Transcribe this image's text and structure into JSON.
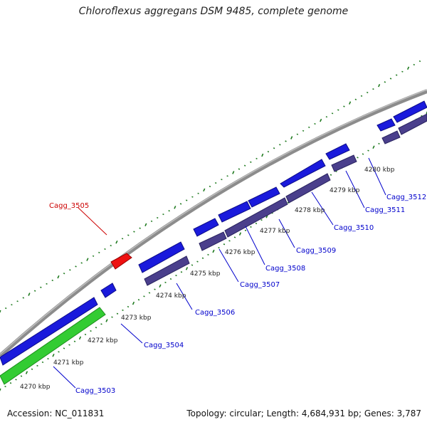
{
  "title": "Chloroflexus aggregans DSM 9485, complete genome",
  "footer": {
    "accession": "Accession: NC_011831",
    "summary": "Topology: circular; Length: 4,684,931 bp; Genes: 3,787"
  },
  "colors": {
    "backbone": "#8c8c8c",
    "forward_gene": "#1a1adc",
    "reverse_gene": "#4a3f8c",
    "rna_gene": "#33cc33",
    "highlight_gene": "#ee1111",
    "tick": "#1f7a1f",
    "label_blue": "#0000cc",
    "label_red": "#cc0000"
  },
  "kbp_labels": [
    "4270 kbp",
    "4271 kbp",
    "4272 kbp",
    "4273 kbp",
    "4274 kbp",
    "4275 kbp",
    "4276 kbp",
    "4277 kbp",
    "4278 kbp",
    "4279 kbp",
    "4280 kbp"
  ],
  "gene_labels": [
    {
      "text": "Cagg_3503",
      "style": "blue"
    },
    {
      "text": "Cagg_3504",
      "style": "blue"
    },
    {
      "text": "Cagg_3505",
      "style": "red"
    },
    {
      "text": "Cagg_3506",
      "style": "blue"
    },
    {
      "text": "Cagg_3507",
      "style": "blue"
    },
    {
      "text": "Cagg_3508",
      "style": "blue"
    },
    {
      "text": "Cagg_3509",
      "style": "blue"
    },
    {
      "text": "Cagg_3510",
      "style": "blue"
    },
    {
      "text": "Cagg_3511",
      "style": "blue"
    },
    {
      "text": "Cagg_3512",
      "style": "blue"
    }
  ]
}
